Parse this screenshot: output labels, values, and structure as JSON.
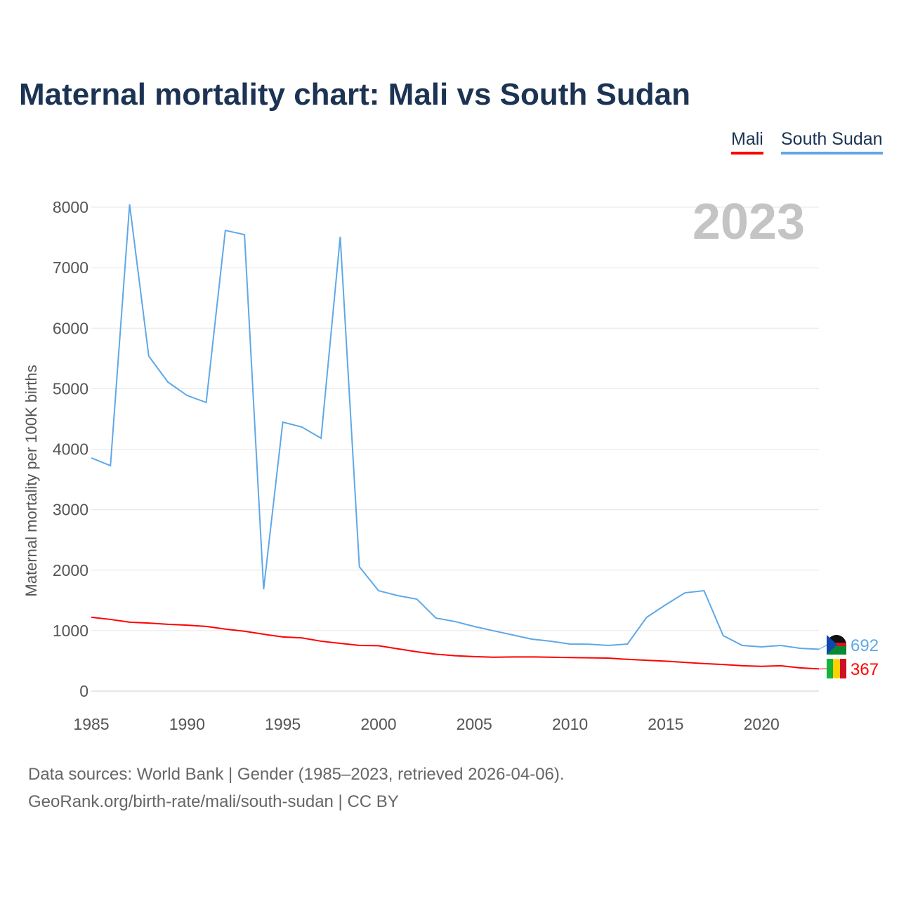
{
  "title": "Maternal mortality chart: Mali vs South Sudan",
  "year_watermark": "2023",
  "footer": {
    "line1": "Data sources: World Bank | Gender (1985–2023, retrieved 2026-04-06).",
    "line2": "GeoRank.org/birth-rate/mali/south-sudan | CC BY"
  },
  "chart_data": {
    "type": "line",
    "title": "Maternal mortality chart: Mali vs South Sudan",
    "xlabel": "",
    "ylabel": "Maternal mortality per 100K births",
    "xlim": [
      1985,
      2023
    ],
    "ylim": [
      0,
      8000
    ],
    "xticks": [
      1985,
      1990,
      1995,
      2000,
      2005,
      2010,
      2015,
      2020
    ],
    "yticks": [
      0,
      1000,
      2000,
      3000,
      4000,
      5000,
      6000,
      7000,
      8000
    ],
    "grid": true,
    "legend_position": "top-right",
    "x": [
      1985,
      1986,
      1987,
      1988,
      1989,
      1990,
      1991,
      1992,
      1993,
      1994,
      1995,
      1996,
      1997,
      1998,
      1999,
      2000,
      2001,
      2002,
      2003,
      2004,
      2005,
      2006,
      2007,
      2008,
      2009,
      2010,
      2011,
      2012,
      2013,
      2014,
      2015,
      2016,
      2017,
      2018,
      2019,
      2020,
      2021,
      2022,
      2023
    ],
    "series": [
      {
        "name": "Mali",
        "color": "#ff0000",
        "end_label": "367",
        "values": [
          1220,
          1185,
          1140,
          1125,
          1105,
          1090,
          1070,
          1025,
          990,
          940,
          895,
          880,
          825,
          790,
          755,
          750,
          700,
          650,
          610,
          585,
          570,
          560,
          565,
          565,
          560,
          555,
          550,
          545,
          525,
          510,
          495,
          475,
          455,
          440,
          420,
          410,
          420,
          385,
          367
        ]
      },
      {
        "name": "South Sudan",
        "color": "#5fa8e8",
        "end_label": "692",
        "values": [
          3855,
          3727,
          8046,
          5538,
          5109,
          4888,
          4772,
          7616,
          7547,
          1683,
          4447,
          4365,
          4180,
          7512,
          2055,
          1660,
          1579,
          1521,
          1207,
          1150,
          1068,
          998,
          929,
          859,
          824,
          778,
          775,
          755,
          778,
          1219,
          1428,
          1625,
          1660,
          917,
          755,
          731,
          755,
          708,
          692
        ]
      }
    ]
  }
}
